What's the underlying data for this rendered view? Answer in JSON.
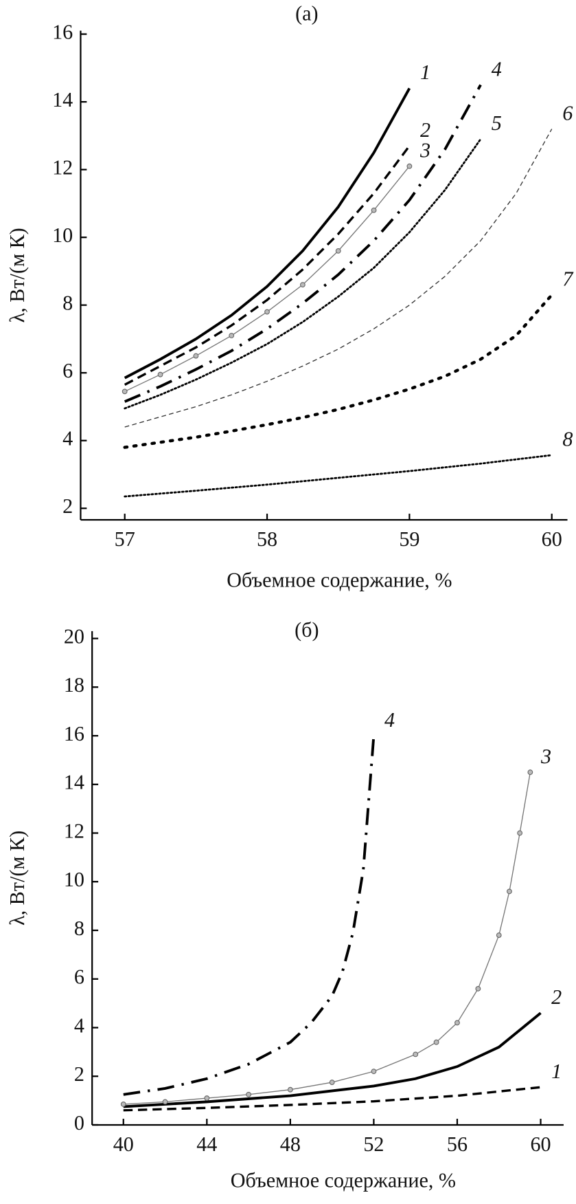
{
  "chart_data": [
    {
      "type": "line",
      "title": "(а)",
      "x_label": "Объемное содержание, %",
      "y_label": "λ, Вт/(м К)",
      "xlim": [
        56.69,
        60.11
      ],
      "ylim": [
        1.66,
        16.1
      ],
      "xticks": [
        57,
        58,
        59,
        60
      ],
      "yticks": [
        2,
        4,
        6,
        8,
        10,
        12,
        14,
        16
      ],
      "series": [
        {
          "name": "1",
          "color": "#000000",
          "style": "solid",
          "x": [
            57,
            57.25,
            57.5,
            57.75,
            58,
            58.25,
            58.5,
            58.75,
            59
          ],
          "values": [
            5.85,
            6.4,
            7.0,
            7.7,
            8.55,
            9.6,
            10.9,
            12.5,
            14.4
          ]
        },
        {
          "name": "2",
          "color": "#000000",
          "style": "dash",
          "x": [
            57,
            57.25,
            57.5,
            57.75,
            58,
            58.25,
            58.5,
            58.75,
            59
          ],
          "values": [
            5.65,
            6.2,
            6.75,
            7.4,
            8.15,
            9.05,
            10.1,
            11.3,
            12.7
          ]
        },
        {
          "name": "3",
          "color": "#777777",
          "style": "marker",
          "x": [
            57,
            57.25,
            57.5,
            57.75,
            58,
            58.25,
            58.5,
            58.75,
            59
          ],
          "values": [
            5.45,
            5.95,
            6.5,
            7.1,
            7.8,
            8.6,
            9.6,
            10.8,
            12.1
          ]
        },
        {
          "name": "4",
          "color": "#000000",
          "style": "dashdot",
          "x": [
            57,
            57.25,
            57.5,
            57.75,
            58,
            58.25,
            58.5,
            58.75,
            59,
            59.25,
            59.5
          ],
          "values": [
            5.15,
            5.6,
            6.1,
            6.65,
            7.3,
            8.05,
            8.9,
            9.9,
            11.1,
            12.6,
            14.5
          ]
        },
        {
          "name": "5",
          "color": "#000000",
          "style": "dot",
          "x": [
            57,
            57.25,
            57.5,
            57.75,
            58,
            58.25,
            58.5,
            58.75,
            59,
            59.25,
            59.5
          ],
          "values": [
            4.95,
            5.35,
            5.8,
            6.3,
            6.85,
            7.5,
            8.25,
            9.1,
            10.15,
            11.4,
            12.9
          ]
        },
        {
          "name": "6",
          "color": "#333333",
          "style": "thindash",
          "x": [
            57,
            57.25,
            57.5,
            57.75,
            58,
            58.25,
            58.5,
            58.75,
            59,
            59.25,
            59.5,
            59.75,
            60
          ],
          "values": [
            4.4,
            4.7,
            5.0,
            5.35,
            5.75,
            6.2,
            6.7,
            7.3,
            8.0,
            8.85,
            9.9,
            11.3,
            13.2
          ]
        },
        {
          "name": "7",
          "color": "#000000",
          "style": "sparse",
          "x": [
            57,
            57.25,
            57.5,
            57.75,
            58,
            58.25,
            58.5,
            58.75,
            59,
            59.25,
            59.5,
            59.75,
            60
          ],
          "values": [
            3.8,
            3.95,
            4.1,
            4.28,
            4.47,
            4.68,
            4.92,
            5.2,
            5.52,
            5.9,
            6.4,
            7.1,
            8.3
          ]
        },
        {
          "name": "8",
          "color": "#000000",
          "style": "dot",
          "x": [
            57,
            57.5,
            58,
            58.5,
            59,
            59.5,
            60
          ],
          "values": [
            2.35,
            2.52,
            2.7,
            2.9,
            3.1,
            3.32,
            3.57
          ]
        }
      ]
    },
    {
      "type": "line",
      "title": "(б)",
      "x_label": "Объемное содержание, %",
      "y_label": "λ, Вт/(м К)",
      "xlim": [
        38.5,
        61.1
      ],
      "ylim": [
        0,
        20.3
      ],
      "xticks": [
        40,
        44,
        48,
        52,
        56,
        60
      ],
      "yticks": [
        0,
        2,
        4,
        6,
        8,
        10,
        12,
        14,
        16,
        18,
        20
      ],
      "series": [
        {
          "name": "1",
          "color": "#000000",
          "style": "dash",
          "x": [
            40,
            44,
            48,
            52,
            56,
            60
          ],
          "values": [
            0.6,
            0.7,
            0.82,
            0.97,
            1.2,
            1.55
          ]
        },
        {
          "name": "2",
          "color": "#000000",
          "style": "solid",
          "x": [
            40,
            44,
            48,
            52,
            54,
            56,
            58,
            60
          ],
          "values": [
            0.75,
            0.95,
            1.2,
            1.6,
            1.9,
            2.4,
            3.2,
            4.6
          ]
        },
        {
          "name": "3",
          "color": "#777777",
          "style": "marker",
          "x": [
            40,
            42,
            44,
            46,
            48,
            50,
            52,
            54,
            55,
            56,
            57,
            58,
            58.5,
            59,
            59.5
          ],
          "values": [
            0.85,
            0.95,
            1.1,
            1.25,
            1.45,
            1.75,
            2.2,
            2.9,
            3.4,
            4.2,
            5.6,
            7.8,
            9.6,
            12.0,
            14.5
          ]
        },
        {
          "name": "4",
          "color": "#000000",
          "style": "dashdot",
          "x": [
            40,
            42,
            44,
            46,
            48,
            49,
            50,
            50.5,
            51,
            51.5,
            52
          ],
          "values": [
            1.25,
            1.5,
            1.9,
            2.5,
            3.4,
            4.2,
            5.3,
            6.3,
            7.9,
            10.5,
            16.0
          ]
        }
      ]
    }
  ]
}
